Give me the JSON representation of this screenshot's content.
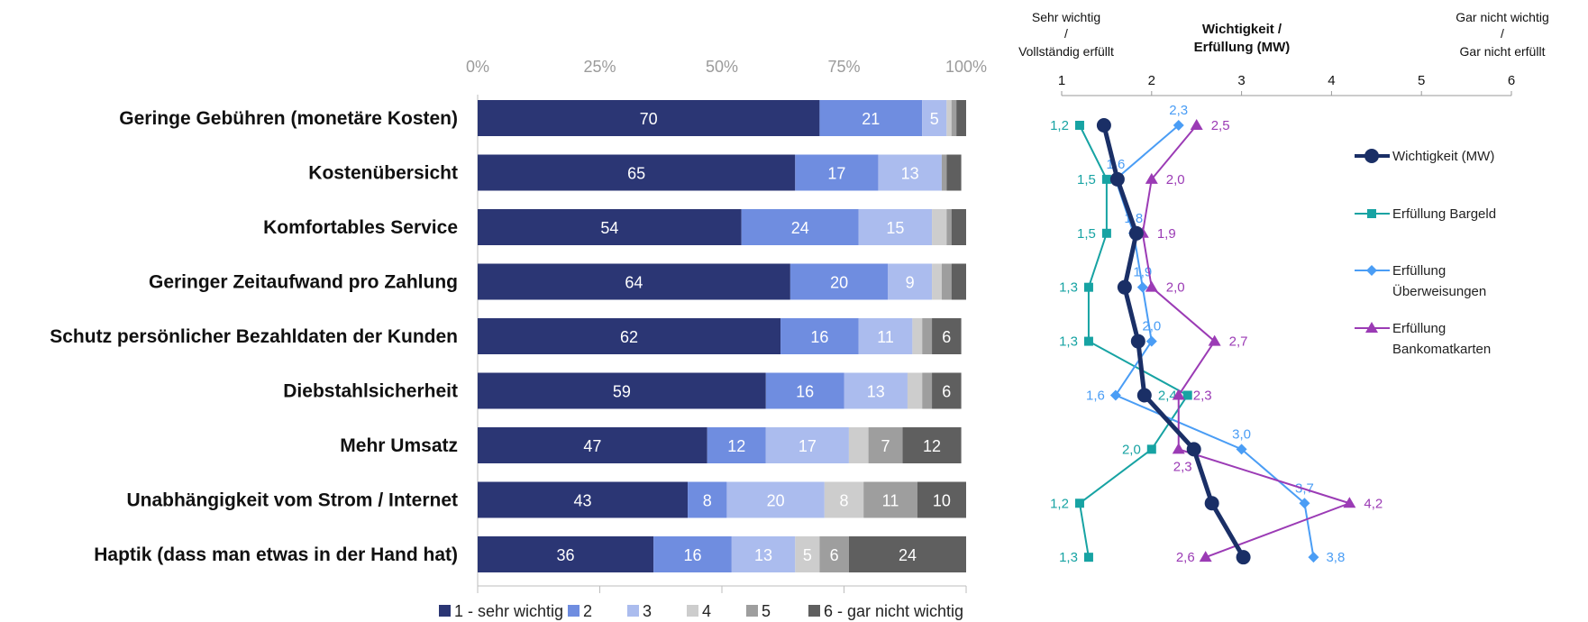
{
  "chart_data": [
    {
      "type": "bar",
      "orientation": "horizontal-stacked-100",
      "categories": [
        "Geringe Gebühren (monetäre Kosten)",
        "Kostenübersicht",
        "Komfortables Service",
        "Geringer Zeitaufwand pro Zahlung",
        "Schutz persönlicher Bezahldaten der Kunden",
        "Diebstahlsicherheit",
        "Mehr Umsatz",
        "Unabhängigkeit vom Strom / Internet",
        "Haptik (dass man etwas in der Hand hat)"
      ],
      "x_ticks": [
        "0%",
        "25%",
        "50%",
        "75%",
        "100%"
      ],
      "xlim": [
        0,
        100
      ],
      "legend_position": "bottom",
      "series": [
        {
          "name": "1 - sehr wichtig",
          "color": "#2b3674",
          "values": [
            70,
            65,
            54,
            64,
            62,
            59,
            47,
            43,
            36
          ],
          "labels": [
            "70",
            "65",
            "54",
            "64",
            "62",
            "59",
            "47",
            "43",
            "36"
          ]
        },
        {
          "name": "2",
          "color": "#6f8de0",
          "values": [
            21,
            17,
            24,
            20,
            16,
            16,
            12,
            8,
            16
          ],
          "labels": [
            "21",
            "17",
            "24",
            "20",
            "16",
            "16",
            "12",
            "8",
            "16"
          ]
        },
        {
          "name": "3",
          "color": "#abbcee",
          "values": [
            5,
            13,
            15,
            9,
            11,
            13,
            17,
            20,
            13
          ],
          "labels": [
            "5",
            "13",
            "15",
            "9",
            "11",
            "13",
            "17",
            "20",
            "13"
          ]
        },
        {
          "name": "4",
          "color": "#cdcdcd",
          "values": [
            1,
            0,
            3,
            2,
            2,
            3,
            4,
            8,
            5
          ],
          "labels": [
            "",
            "",
            "",
            "",
            "",
            "",
            "",
            "8",
            "5"
          ]
        },
        {
          "name": "5",
          "color": "#9e9e9e",
          "values": [
            1,
            1,
            1,
            2,
            2,
            2,
            7,
            11,
            6
          ],
          "labels": [
            "",
            "",
            "",
            "",
            "",
            "",
            "7",
            "11",
            "6"
          ]
        },
        {
          "name": "6 - gar nicht wichtig",
          "color": "#5f5f5f",
          "values": [
            2,
            3,
            3,
            3,
            6,
            6,
            12,
            10,
            24
          ],
          "labels": [
            "",
            "",
            "",
            "",
            "6",
            "6",
            "12",
            "10",
            "24"
          ]
        }
      ]
    },
    {
      "type": "line",
      "orientation": "vertical-profile",
      "title": "Wichtigkeit / Erfüllung (MW)",
      "left_header": "Sehr wichtig / Vollständig erfüllt",
      "right_header": "Gar nicht wichtig / Gar nicht erfüllt",
      "x_ticks": [
        "1",
        "2",
        "3",
        "4",
        "5",
        "6"
      ],
      "xlim": [
        1,
        6
      ],
      "legend_position": "right",
      "series": [
        {
          "name": "Wichtigkeit (MW)",
          "color": "#1a2f66",
          "marker": "circle",
          "values": [
            1.47,
            1.62,
            1.83,
            1.7,
            1.85,
            1.92,
            2.47,
            2.67,
            3.02
          ],
          "labels": []
        },
        {
          "name": "Erfüllung Bargeld",
          "color": "#17a3a3",
          "marker": "square",
          "values": [
            1.2,
            1.5,
            1.5,
            1.3,
            1.3,
            2.4,
            2.0,
            1.2,
            1.3
          ],
          "labels": [
            "1,2",
            "1,5",
            "1,5",
            "1,3",
            "1,3",
            "2,4",
            "2,0",
            "1,2",
            "1,3"
          ]
        },
        {
          "name": "Erfüllung Überweisungen",
          "color": "#4a9df5",
          "marker": "diamond",
          "values": [
            2.3,
            1.6,
            1.8,
            1.9,
            2.0,
            1.6,
            3.0,
            3.7,
            3.8
          ],
          "labels": [
            "2,3",
            "1,6",
            "1,8",
            "1,9",
            "2,0",
            "1,6",
            "3,0",
            "3,7",
            "3,8"
          ]
        },
        {
          "name": "Erfüllung Bankomatkarten",
          "color": "#9b3bb5",
          "marker": "triangle",
          "values": [
            2.5,
            2.0,
            1.9,
            2.0,
            2.7,
            2.3,
            2.3,
            4.2,
            2.6
          ],
          "labels": [
            "2,5",
            "2,0",
            "1,9",
            "2,0",
            "2,7",
            "2,3",
            "2,3",
            "4,2",
            "2,6"
          ]
        }
      ],
      "legend_labels": [
        [
          "Wichtigkeit (MW)"
        ],
        [
          "Erfüllung Bargeld"
        ],
        [
          "Erfüllung",
          "Überweisungen"
        ],
        [
          "Erfüllung",
          "Bankomatkarten"
        ]
      ]
    }
  ]
}
